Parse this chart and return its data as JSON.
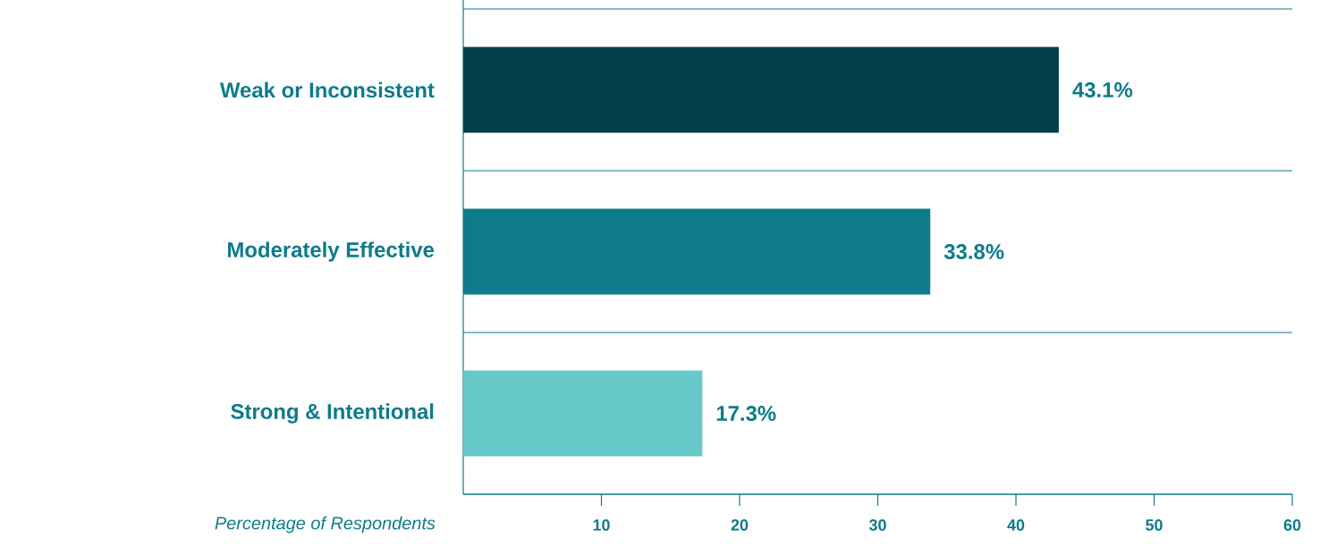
{
  "chart_data": {
    "type": "bar",
    "orientation": "horizontal",
    "xlabel": "Percentage of Respondents",
    "categories": [
      "Weak or Inconsistent",
      "Moderately Effective",
      "Strong & Intentional"
    ],
    "values": [
      43.1,
      33.8,
      17.3
    ],
    "colors": [
      "#033f48",
      "#0d7b8c",
      "#66c8c9"
    ],
    "value_labels": [
      "43.1%",
      "33.8%",
      "17.3%"
    ],
    "xlim": [
      0,
      60
    ],
    "xticks": [
      10,
      20,
      30,
      40,
      50,
      60
    ],
    "grid": "y",
    "tick_labels": "x"
  }
}
